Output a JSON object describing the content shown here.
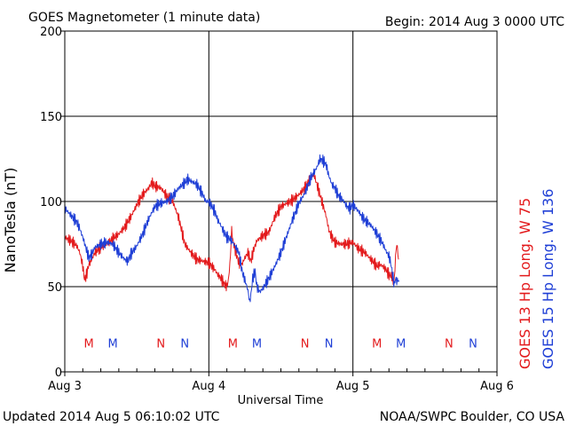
{
  "header": {
    "title": "GOES Magnetometer (1 minute data)",
    "begin": "Begin:  2014 Aug 3 0000 UTC"
  },
  "footer": {
    "updated": "Updated 2014 Aug  5 06:10:02 UTC",
    "credit": "NOAA/SWPC Boulder, CO USA"
  },
  "chart_data": {
    "type": "line",
    "ylabel": "NanoTesla (nT)",
    "xlabel": "Universal Time",
    "ylim": [
      0,
      200
    ],
    "xlim_hours": [
      0,
      72
    ],
    "yticks": [
      "0",
      "50",
      "100",
      "150",
      "200"
    ],
    "xticks": [
      {
        "hour": 0,
        "label": "Aug 3"
      },
      {
        "hour": 24,
        "label": "Aug 4"
      },
      {
        "hour": 48,
        "label": "Aug 5"
      },
      {
        "hour": 72,
        "label": "Aug 6"
      }
    ],
    "grid": true,
    "colors": {
      "goes13": "#e31a1c",
      "goes15": "#1f3fd6"
    },
    "series": [
      {
        "name": "GOES 13 Hp  Long. W 75",
        "color": "#e31a1c",
        "points": [
          [
            0,
            79
          ],
          [
            1,
            77
          ],
          [
            2,
            74
          ],
          [
            2.5,
            70
          ],
          [
            3,
            62
          ],
          [
            3.3,
            54
          ],
          [
            3.7,
            58
          ],
          [
            4,
            63
          ],
          [
            4.5,
            66
          ],
          [
            5,
            70
          ],
          [
            6,
            73
          ],
          [
            7,
            75
          ],
          [
            8,
            78
          ],
          [
            9,
            81
          ],
          [
            10,
            85
          ],
          [
            11,
            91
          ],
          [
            12,
            98
          ],
          [
            13,
            104
          ],
          [
            14,
            108
          ],
          [
            14.5,
            111
          ],
          [
            15,
            109
          ],
          [
            16,
            108
          ],
          [
            17,
            103
          ],
          [
            18,
            100
          ],
          [
            19,
            90
          ],
          [
            20,
            75
          ],
          [
            21,
            70
          ],
          [
            22,
            66
          ],
          [
            23,
            65
          ],
          [
            24,
            64
          ],
          [
            24.5,
            62
          ],
          [
            25,
            60
          ],
          [
            25.5,
            57
          ],
          [
            26,
            55
          ],
          [
            26.5,
            52
          ],
          [
            27,
            50
          ],
          [
            27.3,
            55
          ],
          [
            27.6,
            68
          ],
          [
            27.8,
            84
          ],
          [
            28,
            77
          ],
          [
            28.5,
            70
          ],
          [
            29,
            64
          ],
          [
            29.5,
            63
          ],
          [
            30,
            67
          ],
          [
            30.5,
            70
          ],
          [
            31,
            65
          ],
          [
            31.5,
            72
          ],
          [
            32,
            77
          ],
          [
            33,
            80
          ],
          [
            34,
            82
          ],
          [
            35,
            91
          ],
          [
            36,
            97
          ],
          [
            37,
            99
          ],
          [
            38,
            101
          ],
          [
            39,
            104
          ],
          [
            40,
            108
          ],
          [
            41,
            114
          ],
          [
            41.5,
            116
          ],
          [
            42,
            110
          ],
          [
            42.5,
            104
          ],
          [
            43,
            98
          ],
          [
            43.5,
            92
          ],
          [
            44,
            83
          ],
          [
            44.5,
            79
          ],
          [
            45,
            76
          ],
          [
            46,
            75
          ],
          [
            47,
            75
          ],
          [
            48,
            76
          ],
          [
            48.5,
            74
          ],
          [
            49,
            72
          ],
          [
            50,
            70
          ],
          [
            50.5,
            68
          ],
          [
            51,
            66
          ],
          [
            52,
            62
          ],
          [
            52.5,
            63
          ],
          [
            53,
            62
          ],
          [
            53.5,
            60
          ],
          [
            54,
            57
          ],
          [
            54.5,
            56
          ],
          [
            54.8,
            51
          ],
          [
            55,
            60
          ],
          [
            55.1,
            68
          ],
          [
            55.3,
            75
          ],
          [
            55.5,
            70
          ],
          [
            55.6,
            66
          ]
        ]
      },
      {
        "name": "GOES 15 Hp  Long. W 136",
        "color": "#1f3fd6",
        "points": [
          [
            0,
            96
          ],
          [
            1,
            92
          ],
          [
            2,
            88
          ],
          [
            2.5,
            84
          ],
          [
            3,
            79
          ],
          [
            3.5,
            73
          ],
          [
            4,
            67
          ],
          [
            4.5,
            69
          ],
          [
            5,
            73
          ],
          [
            6,
            75
          ],
          [
            7,
            76
          ],
          [
            8,
            75
          ],
          [
            9,
            70
          ],
          [
            10,
            66
          ],
          [
            10.5,
            65
          ],
          [
            11,
            69
          ],
          [
            12,
            74
          ],
          [
            13,
            81
          ],
          [
            14,
            90
          ],
          [
            15,
            97
          ],
          [
            16,
            99
          ],
          [
            17,
            100
          ],
          [
            18,
            103
          ],
          [
            19,
            108
          ],
          [
            20,
            111
          ],
          [
            20.5,
            113
          ],
          [
            21,
            112
          ],
          [
            22,
            110
          ],
          [
            23,
            104
          ],
          [
            23.5,
            100
          ],
          [
            24,
            100
          ],
          [
            24.5,
            97
          ],
          [
            25,
            94
          ],
          [
            25.5,
            89
          ],
          [
            26,
            86
          ],
          [
            26.5,
            82
          ],
          [
            27,
            79
          ],
          [
            27.5,
            78
          ],
          [
            28,
            76
          ],
          [
            28.5,
            73
          ],
          [
            29,
            70
          ],
          [
            29.3,
            64
          ],
          [
            29.6,
            58
          ],
          [
            30,
            54
          ],
          [
            30.5,
            48
          ],
          [
            30.8,
            41
          ],
          [
            31,
            45
          ],
          [
            31.3,
            55
          ],
          [
            31.7,
            59
          ],
          [
            32,
            50
          ],
          [
            32.5,
            47
          ],
          [
            33,
            49
          ],
          [
            34,
            55
          ],
          [
            35,
            62
          ],
          [
            36,
            70
          ],
          [
            37,
            80
          ],
          [
            38,
            90
          ],
          [
            39,
            99
          ],
          [
            40,
            105
          ],
          [
            41,
            114
          ],
          [
            42,
            120
          ],
          [
            42.5,
            125
          ],
          [
            43,
            124
          ],
          [
            43.5,
            122
          ],
          [
            44,
            115
          ],
          [
            44.5,
            110
          ],
          [
            45,
            108
          ],
          [
            45.5,
            104
          ],
          [
            46,
            102
          ],
          [
            46.5,
            100
          ],
          [
            47,
            97
          ],
          [
            47.5,
            96
          ],
          [
            48,
            98
          ],
          [
            48.5,
            96
          ],
          [
            49,
            94
          ],
          [
            49.5,
            91
          ],
          [
            50,
            89
          ],
          [
            51,
            86
          ],
          [
            52,
            81
          ],
          [
            52.5,
            78
          ],
          [
            53,
            75
          ],
          [
            53.5,
            71
          ],
          [
            54,
            68
          ],
          [
            54.3,
            64
          ],
          [
            54.6,
            57
          ],
          [
            54.9,
            51
          ],
          [
            55.1,
            55
          ],
          [
            55.3,
            53
          ],
          [
            55.5,
            54
          ],
          [
            55.7,
            53
          ]
        ]
      }
    ],
    "markers": [
      {
        "label": "M",
        "hour": 4,
        "series": "GOES 13 Hp  Long. W 75"
      },
      {
        "label": "M",
        "hour": 8,
        "series": "GOES 15 Hp  Long. W 136"
      },
      {
        "label": "N",
        "hour": 16,
        "series": "GOES 13 Hp  Long. W 75"
      },
      {
        "label": "N",
        "hour": 20,
        "series": "GOES 15 Hp  Long. W 136"
      },
      {
        "label": "M",
        "hour": 28,
        "series": "GOES 13 Hp  Long. W 75"
      },
      {
        "label": "M",
        "hour": 32,
        "series": "GOES 15 Hp  Long. W 136"
      },
      {
        "label": "N",
        "hour": 40,
        "series": "GOES 13 Hp  Long. W 75"
      },
      {
        "label": "N",
        "hour": 44,
        "series": "GOES 15 Hp  Long. W 136"
      },
      {
        "label": "M",
        "hour": 52,
        "series": "GOES 13 Hp  Long. W 75"
      },
      {
        "label": "M",
        "hour": 56,
        "series": "GOES 15 Hp  Long. W 136"
      },
      {
        "label": "N",
        "hour": 64,
        "series": "GOES 13 Hp  Long. W 75"
      },
      {
        "label": "N",
        "hour": 68,
        "series": "GOES 15 Hp  Long. W 136"
      }
    ],
    "marker_level": 17
  }
}
